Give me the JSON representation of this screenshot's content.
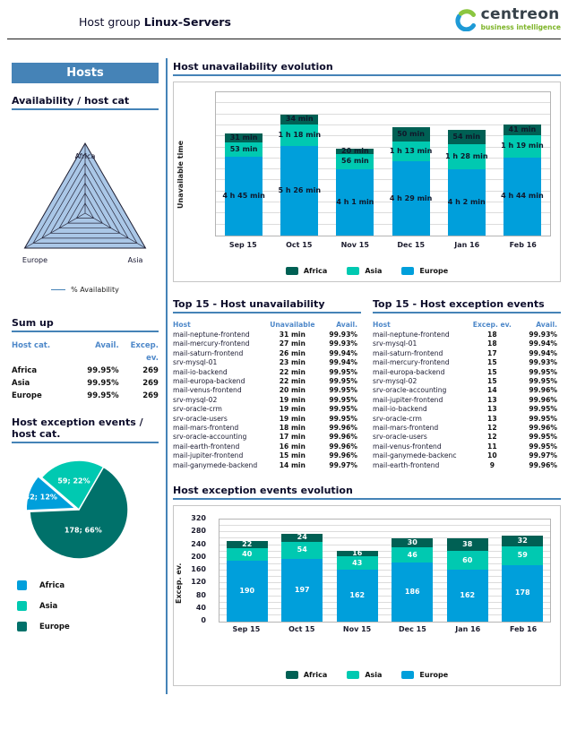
{
  "header": {
    "title_prefix": "Host group",
    "title_bold": "Linux-Servers",
    "brand": "centreon",
    "tagline": "business intelligence"
  },
  "colors": {
    "accent_steel_blue": "#4583b7",
    "table_header_blue": "#4e88c9",
    "europe_blue": "#009fdb",
    "asia_teal": "#00c9b1",
    "africa_dark_teal": "#006054",
    "pie_europe_dark": "#00716a",
    "radar_fill": "#aac7e7"
  },
  "sidebar": {
    "title": "Hosts",
    "availability_heading": "Availability / host cat",
    "radar_legend": "% Availability",
    "sum_up": {
      "heading": "Sum up",
      "columns": [
        "Host cat.",
        "Avail.",
        "Excep. ev."
      ],
      "rows": [
        [
          "Africa",
          "99.95%",
          "269"
        ],
        [
          "Asia",
          "99.95%",
          "269"
        ],
        [
          "Europe",
          "99.95%",
          "269"
        ]
      ]
    },
    "exception_heading": "Host exception events / host cat.",
    "pie_legend": [
      "Africa",
      "Asia",
      "Europe"
    ]
  },
  "main": {
    "unavailability_heading": "Host unavailability evolution",
    "top_unavailability": {
      "heading": "Top 15 - Host unavailability",
      "columns": [
        "Host",
        "Unavailable",
        "Avail."
      ],
      "rows": [
        [
          "mail-neptune-frontend",
          "31 min",
          "99.93%"
        ],
        [
          "mail-mercury-frontend",
          "27 min",
          "99.93%"
        ],
        [
          "mail-saturn-frontend",
          "26 min",
          "99.94%"
        ],
        [
          "srv-mysql-01",
          "23 min",
          "99.94%"
        ],
        [
          "mail-io-backend",
          "22 min",
          "99.95%"
        ],
        [
          "mail-europa-backend",
          "22 min",
          "99.95%"
        ],
        [
          "mail-venus-frontend",
          "20 min",
          "99.95%"
        ],
        [
          "srv-mysql-02",
          "19 min",
          "99.95%"
        ],
        [
          "srv-oracle-crm",
          "19 min",
          "99.95%"
        ],
        [
          "srv-oracle-users",
          "19 min",
          "99.95%"
        ],
        [
          "mail-mars-frontend",
          "18 min",
          "99.96%"
        ],
        [
          "srv-oracle-accounting",
          "17 min",
          "99.96%"
        ],
        [
          "mail-earth-frontend",
          "16 min",
          "99.96%"
        ],
        [
          "mail-jupiter-frontend",
          "15 min",
          "99.96%"
        ],
        [
          "mail-ganymede-backend",
          "14 min",
          "99.97%"
        ]
      ]
    },
    "top_exceptions": {
      "heading": "Top 15 - Host exception events",
      "columns": [
        "Host",
        "Excep. ev.",
        "Avail."
      ],
      "rows": [
        [
          "mail-neptune-frontend",
          "18",
          "99.93%"
        ],
        [
          "srv-mysql-01",
          "18",
          "99.94%"
        ],
        [
          "mail-saturn-frontend",
          "17",
          "99.94%"
        ],
        [
          "mail-mercury-frontend",
          "15",
          "99.93%"
        ],
        [
          "mail-europa-backend",
          "15",
          "99.95%"
        ],
        [
          "srv-mysql-02",
          "15",
          "99.95%"
        ],
        [
          "srv-oracle-accounting",
          "14",
          "99.96%"
        ],
        [
          "mail-jupiter-frontend",
          "13",
          "99.96%"
        ],
        [
          "mail-io-backend",
          "13",
          "99.95%"
        ],
        [
          "srv-oracle-crm",
          "13",
          "99.95%"
        ],
        [
          "mail-mars-frontend",
          "12",
          "99.96%"
        ],
        [
          "srv-oracle-users",
          "12",
          "99.95%"
        ],
        [
          "mail-venus-frontend",
          "11",
          "99.95%"
        ],
        [
          "mail-ganymede-backenc",
          "10",
          "99.97%"
        ],
        [
          "mail-earth-frontend",
          "9",
          "99.96%"
        ]
      ]
    },
    "exceptions_heading": "Host exception events evolution"
  },
  "chart_data": [
    {
      "id": "availability-radar",
      "type": "radar",
      "title": "Availability / host cat",
      "categories": [
        "Africa",
        "Asia",
        "Europe"
      ],
      "series": [
        {
          "name": "% Availability",
          "values": [
            99.95,
            99.95,
            99.95
          ]
        }
      ],
      "rings": 7,
      "legend": [
        "% Availability"
      ],
      "legend_position": "bottom"
    },
    {
      "id": "unavailability-evolution",
      "type": "bar",
      "stacked": true,
      "title": "Host unavailability evolution",
      "ylabel": "Unavailable time",
      "categories": [
        "Sep 15",
        "Oct 15",
        "Nov 15",
        "Dec 15",
        "Jan 16",
        "Feb 16"
      ],
      "series": [
        {
          "name": "Europe",
          "color": "#009fdb",
          "values": [
            285,
            326,
            241,
            269,
            242,
            284
          ],
          "labels": [
            "4 h 45 min",
            "5 h 26 min",
            "4 h 1 min",
            "4 h 29 min",
            "4 h 2 min",
            "4 h 44 min"
          ]
        },
        {
          "name": "Asia",
          "color": "#00c9b1",
          "values": [
            53,
            78,
            56,
            73,
            88,
            79
          ],
          "labels": [
            "53 min",
            "1 h 18 min",
            "56 min",
            "1 h 13 min",
            "1 h 28 min",
            "1 h 19 min"
          ]
        },
        {
          "name": "Africa",
          "color": "#006054",
          "values": [
            31,
            34,
            20,
            50,
            54,
            41
          ],
          "labels": [
            "31 min",
            "34 min",
            "20 min",
            "50 min",
            "54 min",
            "41 min"
          ]
        }
      ],
      "ylim": [
        0,
        520
      ],
      "grid_step": 40,
      "grid": true,
      "legend": [
        "Africa",
        "Asia",
        "Europe"
      ],
      "legend_position": "bottom"
    },
    {
      "id": "exception-events-pie",
      "type": "pie",
      "title": "Host exception events / host cat.",
      "start_angle_deg": 30,
      "slices": [
        {
          "name": "Europe",
          "value": 178,
          "pct": 66,
          "label": "178; 66%",
          "color": "#00716a"
        },
        {
          "name": "Africa",
          "value": 32,
          "pct": 12,
          "label": "32; 12%",
          "color": "#009fdb"
        },
        {
          "name": "Asia",
          "value": 59,
          "pct": 22,
          "label": "59; 22%",
          "color": "#00c9b1"
        }
      ],
      "legend": [
        "Africa",
        "Asia",
        "Europe"
      ],
      "legend_position": "bottom"
    },
    {
      "id": "exception-events-evolution",
      "type": "bar",
      "stacked": true,
      "title": "Host exception events evolution",
      "ylabel": "Excep. ev.",
      "categories": [
        "Sep 15",
        "Oct 15",
        "Nov 15",
        "Dec 15",
        "Jan 16",
        "Feb 16"
      ],
      "series": [
        {
          "name": "Europe",
          "color": "#009fdb",
          "values": [
            190,
            197,
            162,
            186,
            162,
            178
          ]
        },
        {
          "name": "Asia",
          "color": "#00c9b1",
          "values": [
            40,
            54,
            43,
            46,
            60,
            59
          ]
        },
        {
          "name": "Africa",
          "color": "#006054",
          "values": [
            22,
            24,
            16,
            30,
            38,
            32
          ]
        }
      ],
      "ylim": [
        0,
        320
      ],
      "yticks": [
        0,
        40,
        80,
        120,
        160,
        200,
        240,
        280,
        320
      ],
      "grid_step": 20,
      "grid": true,
      "legend": [
        "Africa",
        "Asia",
        "Europe"
      ],
      "legend_position": "bottom"
    }
  ]
}
